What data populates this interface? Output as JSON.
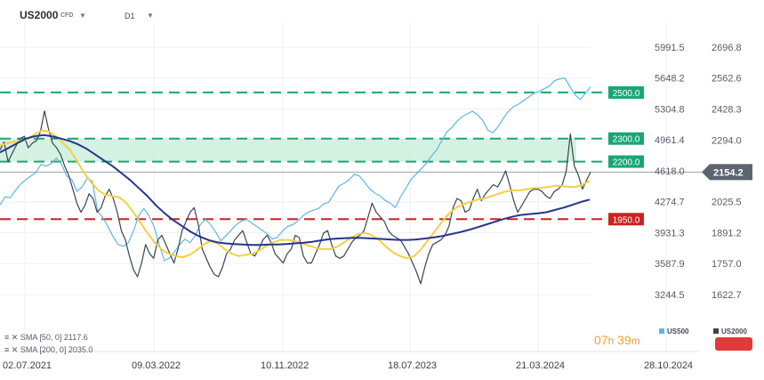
{
  "instrument": {
    "symbol": "US2000",
    "type_tag": "CFD",
    "timeframe": "D1"
  },
  "indicators": [
    {
      "label": "SMA [50, 0]",
      "value": "2117.6"
    },
    {
      "label": "SMA [200, 0]",
      "value": "2035.0"
    }
  ],
  "countdown": {
    "hours": "07",
    "h": "h",
    "minutes": "39",
    "m": "m"
  },
  "legend": [
    {
      "name": "US500",
      "color": "#5fb6e6"
    },
    {
      "name": "US2000",
      "color": "#3b4452"
    }
  ],
  "colors": {
    "us2000": "#3b4452",
    "us500": "#5fb6e6",
    "sma50": "#f4d03f",
    "sma200": "#27348b",
    "zone": "#cdeedc",
    "green_level": "#1aa673",
    "red_level": "#cc2222",
    "current_badge": "#5c6470"
  },
  "chart_data": {
    "type": "line",
    "x_ticks": [
      "02.07.2021",
      "09.03.2022",
      "10.11.2022",
      "18.07.2023",
      "21.03.2024",
      "28.10.2024"
    ],
    "y_right_ticks": [
      "2696.8",
      "2562.6",
      "2428.3",
      "2294.0",
      "2025.5",
      "1891.2",
      "1757.0",
      "1622.7"
    ],
    "y_left_ticks": [
      "5991.5",
      "5648.2",
      "5304.8",
      "4961.4",
      "4618.0",
      "4274.7",
      "3931.3",
      "3587.9",
      "3244.5"
    ],
    "ylim_right": [
      1600,
      2730
    ],
    "ylim_left": [
      3185,
      6060
    ],
    "levels": [
      {
        "label": "2500.0",
        "value": 2500,
        "style": "green"
      },
      {
        "label": "2300.0",
        "value": 2300,
        "style": "green"
      },
      {
        "label": "2200.0",
        "value": 2200,
        "style": "green"
      },
      {
        "label": "1950.0",
        "value": 1950,
        "style": "red"
      }
    ],
    "zone": [
      2200,
      2300
    ],
    "current": {
      "label": "2154.2",
      "value": 2154.2
    },
    "series": [
      {
        "name": "US2000",
        "axis": "right",
        "values": [
          2250,
          2285,
          2200,
          2235,
          2270,
          2300,
          2310,
          2260,
          2280,
          2290,
          2330,
          2420,
          2340,
          2280,
          2260,
          2230,
          2180,
          2140,
          2080,
          2020,
          1980,
          2010,
          2060,
          2040,
          1980,
          2000,
          2050,
          2080,
          2040,
          1980,
          1900,
          1860,
          1790,
          1730,
          1700,
          1760,
          1840,
          1800,
          1780,
          1860,
          1880,
          1840,
          1800,
          1760,
          1820,
          1900,
          1940,
          1980,
          2000,
          1930,
          1820,
          1780,
          1740,
          1710,
          1700,
          1740,
          1800,
          1820,
          1860,
          1880,
          1900,
          1850,
          1800,
          1790,
          1820,
          1860,
          1880,
          1850,
          1800,
          1780,
          1760,
          1800,
          1820,
          1880,
          1870,
          1790,
          1760,
          1760,
          1800,
          1840,
          1890,
          1900,
          1840,
          1790,
          1780,
          1790,
          1820,
          1850,
          1870,
          1880,
          1900,
          1960,
          2020,
          1980,
          1960,
          1940,
          1900,
          1880,
          1870,
          1860,
          1830,
          1800,
          1760,
          1720,
          1670,
          1740,
          1800,
          1840,
          1850,
          1860,
          1880,
          1920,
          2000,
          2040,
          2030,
          1980,
          1990,
          2040,
          2080,
          2030,
          2060,
          2080,
          2100,
          2090,
          2120,
          2160,
          2100,
          2030,
          1980,
          2010,
          2040,
          2070,
          2080,
          2080,
          2070,
          2050,
          2040,
          2070,
          2080,
          2100,
          2160,
          2320,
          2180,
          2140,
          2080,
          2120,
          2154.2
        ]
      },
      {
        "name": "US500",
        "axis": "left",
        "values": [
          4240,
          4330,
          4320,
          4400,
          4470,
          4520,
          4560,
          4600,
          4690,
          4670,
          4700,
          4760,
          4690,
          4560,
          4520,
          4390,
          4440,
          4540,
          4500,
          4170,
          4100,
          4000,
          3890,
          3800,
          3780,
          3820,
          3950,
          4120,
          4200,
          4120,
          4000,
          3800,
          3620,
          3650,
          3720,
          3800,
          3860,
          3820,
          3900,
          4020,
          4080,
          4020,
          3940,
          3840,
          3900,
          3960,
          4020,
          4060,
          4080,
          4040,
          4000,
          3960,
          3920,
          3860,
          3880,
          3950,
          4000,
          4020,
          4060,
          4120,
          4160,
          4180,
          4200,
          4250,
          4270,
          4360,
          4450,
          4480,
          4520,
          4580,
          4560,
          4490,
          4420,
          4370,
          4340,
          4290,
          4260,
          4210,
          4330,
          4420,
          4520,
          4580,
          4640,
          4700,
          4780,
          4850,
          4950,
          5050,
          5100,
          5170,
          5220,
          5250,
          5280,
          5240,
          5180,
          5070,
          5040,
          5110,
          5200,
          5280,
          5330,
          5360,
          5400,
          5440,
          5480,
          5500,
          5530,
          5560,
          5620,
          5640,
          5650,
          5550,
          5460,
          5410,
          5480,
          5550
        ]
      },
      {
        "name": "SMA [50, 0]",
        "axis": "right",
        "values": [
          2270,
          2280,
          2285,
          2290,
          2300,
          2320,
          2335,
          2330,
          2310,
          2280,
          2250,
          2200,
          2150,
          2110,
          2075,
          2055,
          2050,
          2045,
          2020,
          1980,
          1935,
          1890,
          1850,
          1820,
          1800,
          1790,
          1785,
          1795,
          1815,
          1840,
          1855,
          1845,
          1820,
          1800,
          1790,
          1795,
          1800,
          1815,
          1835,
          1850,
          1860,
          1860,
          1855,
          1845,
          1835,
          1825,
          1820,
          1820,
          1830,
          1850,
          1870,
          1885,
          1890,
          1880,
          1860,
          1830,
          1805,
          1790,
          1780,
          1790,
          1820,
          1860,
          1900,
          1940,
          1975,
          2000,
          2015,
          2025,
          2035,
          2040,
          2050,
          2060,
          2070,
          2075,
          2075,
          2080,
          2085,
          2085,
          2090,
          2095,
          2095,
          2090,
          2090,
          2100,
          2117.6
        ]
      },
      {
        "name": "SMA [200, 0]",
        "axis": "right",
        "values": [
          2240,
          2260,
          2280,
          2300,
          2310,
          2315,
          2310,
          2300,
          2290,
          2275,
          2255,
          2230,
          2205,
          2180,
          2150,
          2120,
          2085,
          2050,
          2010,
          1975,
          1945,
          1920,
          1895,
          1875,
          1860,
          1850,
          1845,
          1842,
          1840,
          1838,
          1838,
          1840,
          1840,
          1842,
          1845,
          1848,
          1852,
          1858,
          1863,
          1866,
          1868,
          1869,
          1868,
          1866,
          1864,
          1862,
          1860,
          1860,
          1862,
          1866,
          1871,
          1877,
          1885,
          1893,
          1903,
          1914,
          1926,
          1938,
          1950,
          1960,
          1968,
          1972,
          1975,
          1980,
          1990,
          2000,
          2012,
          2025,
          2035.0
        ]
      }
    ]
  }
}
